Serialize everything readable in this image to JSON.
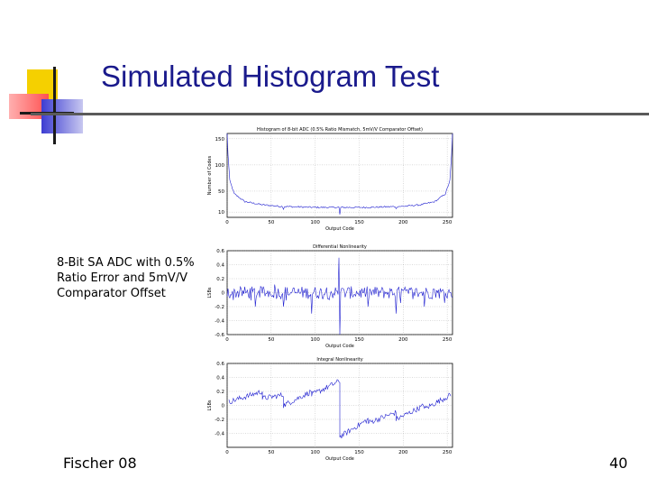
{
  "slide": {
    "title": "Simulated Histogram Test",
    "caption": "8-Bit SA ADC with 0.5% Ratio Error and 5mV/V Comparator Offset",
    "footer_left": "Fischer 08",
    "page_number": "40",
    "colors": {
      "title": "#1a1a8c",
      "deco_yellow": "#f5d000",
      "deco_red": "#ff5050",
      "deco_blue": "#3c3cd2",
      "series": "#2020d0"
    }
  },
  "chart_data": [
    {
      "type": "line",
      "title": "Histogram of 8-bit ADC (0.5% Ratio Mismatch, 5mV/V Comparator Offset)",
      "xlabel": "Output Code",
      "ylabel": "Number of Codes",
      "xlim": [
        0,
        256
      ],
      "ylim": [
        0,
        160
      ],
      "xticks": [
        "0",
        "50",
        "100",
        "150",
        "200",
        "250"
      ],
      "yticks": [
        "10",
        "50",
        "100",
        "150"
      ],
      "grid": true,
      "description_points": {
        "x": [
          0,
          1,
          3,
          8,
          20,
          40,
          60,
          80,
          100,
          120,
          128,
          140,
          160,
          180,
          200,
          220,
          236,
          248,
          253,
          255,
          256
        ],
        "y": [
          160,
          120,
          70,
          45,
          30,
          24,
          21,
          20,
          19,
          19,
          19,
          19,
          19,
          20,
          21,
          24,
          30,
          45,
          70,
          120,
          160
        ]
      }
    },
    {
      "type": "line",
      "title": "Differential Nonlinearity",
      "xlabel": "Output Code",
      "ylabel": "LSBs",
      "xlim": [
        0,
        256
      ],
      "ylim": [
        -0.6,
        0.6
      ],
      "xticks": [
        "0",
        "50",
        "100",
        "150",
        "200",
        "250"
      ],
      "yticks": [
        "-0.6",
        "-0.4",
        "-0.2",
        "0",
        "0.2",
        "0.4",
        "0.6"
      ],
      "grid": true,
      "spikes": {
        "x": [
          32,
          64,
          96,
          128,
          160,
          192,
          224
        ],
        "y": [
          -0.2,
          -0.2,
          -0.3,
          -0.6,
          -0.2,
          -0.3,
          -0.2
        ]
      },
      "up_spike": {
        "x": 127,
        "y": 0.5
      }
    },
    {
      "type": "line",
      "title": "Integral Nonlinearity",
      "xlabel": "Output Code",
      "ylabel": "LSBs",
      "xlim": [
        0,
        256
      ],
      "ylim": [
        -0.6,
        0.6
      ],
      "xticks": [
        "0",
        "50",
        "100",
        "150",
        "200",
        "250"
      ],
      "yticks": [
        "-0.4",
        "-0.2",
        "0",
        "0.2",
        "0.4",
        "0.6"
      ],
      "grid": true,
      "segments": [
        {
          "x": [
            2,
            40
          ],
          "y": [
            0.05,
            0.2
          ]
        },
        {
          "x": [
            40,
            64
          ],
          "y": [
            0.1,
            0.15
          ]
        },
        {
          "x": [
            64,
            96
          ],
          "y": [
            0.0,
            0.2
          ]
        },
        {
          "x": [
            96,
            128
          ],
          "y": [
            0.15,
            0.35
          ]
        },
        {
          "x": [
            128,
            160
          ],
          "y": [
            -0.45,
            -0.2
          ]
        },
        {
          "x": [
            160,
            192
          ],
          "y": [
            -0.25,
            -0.1
          ]
        },
        {
          "x": [
            192,
            224
          ],
          "y": [
            -0.2,
            0.0
          ]
        },
        {
          "x": [
            224,
            254
          ],
          "y": [
            -0.05,
            0.15
          ]
        }
      ]
    }
  ]
}
